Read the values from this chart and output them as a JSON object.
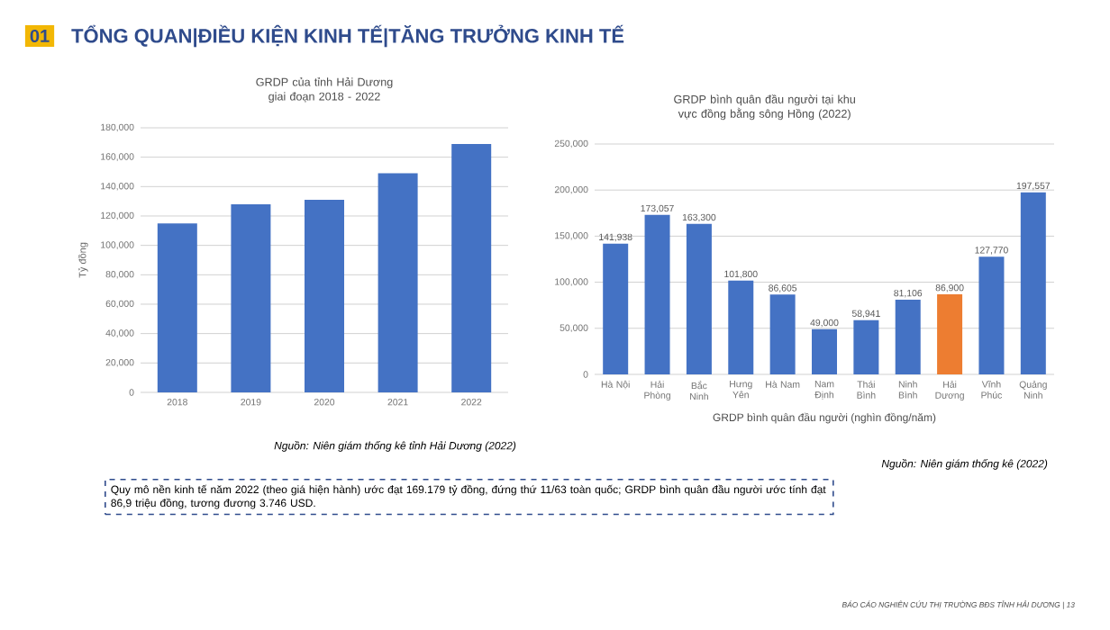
{
  "chart_data": [
    {
      "type": "bar",
      "title": "GRDP của tỉnh Hải Dương giai đoạn 2018 - 2022",
      "ylabel": "Tỷ đồng",
      "categories": [
        "2018",
        "2019",
        "2020",
        "2021",
        "2022"
      ],
      "values": [
        115000,
        128000,
        131000,
        149000,
        169000
      ],
      "color": "#4472c4",
      "ylim": [
        0,
        180000
      ],
      "yticks": [
        0,
        {
          "value": 20000,
          "label": "20,000"
        },
        {
          "value": 40000,
          "label": "40,000"
        },
        {
          "value": 60000,
          "label": "60,000"
        },
        {
          "value": 80000,
          "label": "80,000"
        },
        {
          "value": 100000,
          "label": "100,000"
        },
        {
          "value": 120000,
          "label": "120,000"
        },
        {
          "value": 140000,
          "label": "140,000"
        },
        {
          "value": 160000,
          "label": "160,000"
        },
        {
          "value": 180000,
          "label": "180,000"
        }
      ],
      "grid": "y",
      "annotations": [
        "01",
        "TỔNG QUAN|ĐIỀU KIỆN KINH TẾ|TĂNG TRƯỞNG KINH TẾ",
        "Nguồn: Niên giám thống kê tỉnh Hải Dương (2022)",
        "Quy mô nền kinh tế năm 2022 (theo giá hiện hành) ước đạt 169.179 tỷ đồng, đứng thứ 11/63 toàn quốc; GRDP bình quân đầu người ước tính đạt 86,9 triệu đồng, tương đương 3.746 USD.",
        "BÁO CÁO NGHIÊN CỨU THỊ TRƯỜNG BĐS TỈNH HẢI DƯƠNG | 13"
      ]
    },
    {
      "type": "bar",
      "title": "GRDP bình quân đầu người tại khu vực đồng bằng sông Hồng (2022)",
      "xlabel": "GRDP bình quân đầu người (nghìn đồng/năm)",
      "categories": [
        "Hà Nội",
        "Hải Phòng",
        "Bắc Ninh",
        "Hưng Yên",
        "Hà Nam",
        "Nam Định",
        "Thái Bình",
        "Ninh Bình",
        "Hải Dương",
        "Vĩnh Phúc",
        "Quảng Ninh"
      ],
      "values": [
        141938,
        173057,
        163300,
        101800,
        86605,
        49000,
        58941,
        81106,
        86900,
        127770,
        197557
      ],
      "value_labels": [
        "141,938",
        "173,057",
        "163,300",
        "101,800",
        "86,605",
        "49,000",
        "58,941",
        "81,106",
        "86,900",
        "127,770",
        "197,557"
      ],
      "colors": [
        "#4472c4",
        "#4472c4",
        "#4472c4",
        "#4472c4",
        "#4472c4",
        "#4472c4",
        "#4472c4",
        "#4472c4",
        "#ed7d31",
        "#4472c4",
        "#4472c4"
      ],
      "ylim": [
        0,
        250000
      ],
      "yticks": [
        0,
        {
          "value": 50000,
          "label": "50,000"
        },
        {
          "value": 100000,
          "label": "100,000"
        },
        {
          "value": 150000,
          "label": "150,000"
        },
        {
          "value": 200000,
          "label": "200,000"
        },
        {
          "value": 250000,
          "label": "250,000"
        }
      ],
      "grid": "y",
      "annotations": [
        "Nguồn: Niên giám thống kê (2022)"
      ]
    }
  ]
}
